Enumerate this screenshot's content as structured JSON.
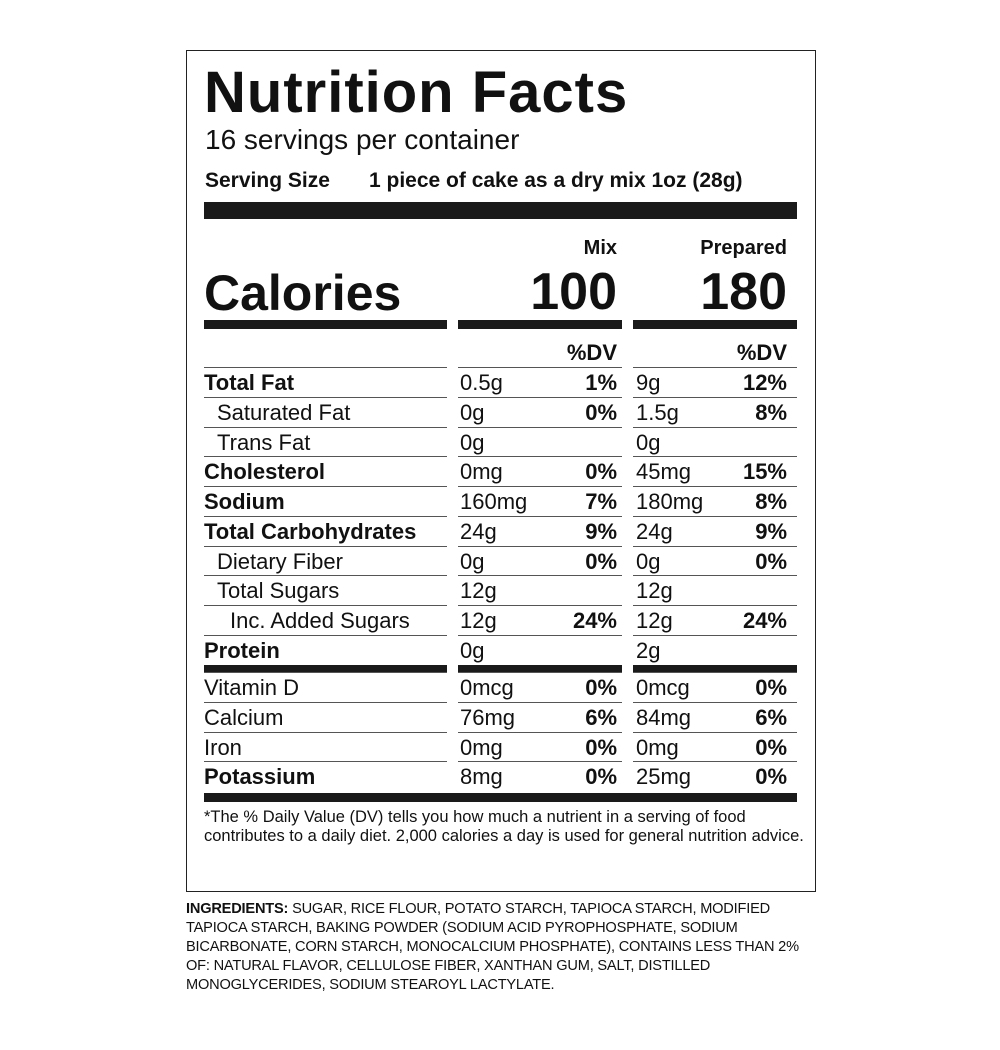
{
  "label": {
    "title": "Nutrition Facts",
    "servings": "16 servings per container",
    "serving_size_label": "Serving Size",
    "serving_size": "1 piece of cake as a dry mix 1oz (28g)",
    "columns": [
      "Mix",
      "Prepared"
    ],
    "calories_label": "Calories",
    "calories": [
      "100",
      "180"
    ],
    "dv_header": "%DV",
    "rows": [
      {
        "name": "Total Fat",
        "bold": true,
        "indent": 0,
        "mix": "0.5g",
        "mix_dv": "1%",
        "prepared": "9g",
        "prepared_dv": "12%"
      },
      {
        "name": "Saturated Fat",
        "bold": false,
        "indent": 1,
        "mix": "0g",
        "mix_dv": "0%",
        "prepared": "1.5g",
        "prepared_dv": "8%"
      },
      {
        "name": "Trans Fat",
        "bold": false,
        "indent": 1,
        "mix": "0g",
        "prepared": "0g"
      },
      {
        "name": "Cholesterol",
        "bold": true,
        "indent": 0,
        "mix": "0mg",
        "mix_dv": "0%",
        "prepared": "45mg",
        "prepared_dv": "15%"
      },
      {
        "name": "Sodium",
        "bold": true,
        "indent": 0,
        "mix": "160mg",
        "mix_dv": "7%",
        "prepared": "180mg",
        "prepared_dv": "8%"
      },
      {
        "name": "Total Carbohydrates",
        "bold": true,
        "indent": 0,
        "mix": "24g",
        "mix_dv": "9%",
        "prepared": "24g",
        "prepared_dv": "9%"
      },
      {
        "name": "Dietary Fiber",
        "bold": false,
        "indent": 1,
        "mix": "0g",
        "mix_dv": "0%",
        "prepared": "0g",
        "prepared_dv": "0%"
      },
      {
        "name": "Total Sugars",
        "bold": false,
        "indent": 1,
        "mix": "12g",
        "prepared": "12g"
      },
      {
        "name": "Inc. Added Sugars",
        "bold": false,
        "indent": 2,
        "mix": "12g",
        "mix_dv": "24%",
        "prepared": "12g",
        "prepared_dv": "24%"
      },
      {
        "name": "Protein",
        "bold": true,
        "indent": 0,
        "mix": "0g",
        "prepared": "2g"
      }
    ],
    "vitamins": [
      {
        "name": "Vitamin D",
        "bold": false,
        "indent": 0,
        "mix": "0mcg",
        "mix_dv": "0%",
        "prepared": "0mcg",
        "prepared_dv": "0%"
      },
      {
        "name": "Calcium",
        "bold": false,
        "indent": 0,
        "mix": "76mg",
        "mix_dv": "6%",
        "prepared": "84mg",
        "prepared_dv": "6%"
      },
      {
        "name": "Iron",
        "bold": false,
        "indent": 0,
        "mix": "0mg",
        "mix_dv": "0%",
        "prepared": "0mg",
        "prepared_dv": "0%"
      },
      {
        "name": "Potassium",
        "bold": true,
        "indent": 0,
        "mix": "8mg",
        "mix_dv": "0%",
        "prepared": "25mg",
        "prepared_dv": "0%"
      }
    ],
    "footnote": "*The % Daily Value (DV) tells you how much a nutrient in a serving of food contributes to a daily diet. 2,000 calories a day is used for general nutrition advice."
  },
  "ingredients": {
    "label": "INGREDIENTS:",
    "text": "SUGAR, RICE FLOUR, POTATO STARCH, TAPIOCA STARCH, MODIFIED TAPIOCA STARCH, BAKING POWDER (SODIUM ACID PYROPHOSPHATE, SODIUM BICARBONATE, CORN STARCH, MONOCALCIUM PHOSPHATE), CONTAINS LESS THAN 2% OF: NATURAL FLAVOR, CELLULOSE FIBER, XANTHAN GUM, SALT, DISTILLED MONOGLYCERIDES, SODIUM STEAROYL LACTYLATE."
  }
}
